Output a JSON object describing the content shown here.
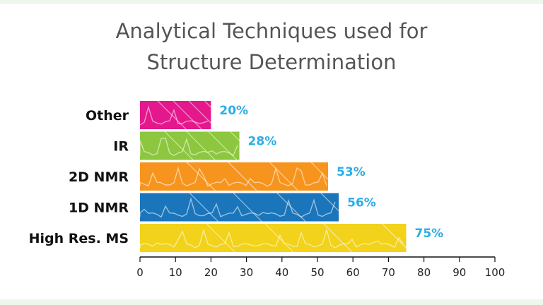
{
  "chart_data": {
    "type": "bar",
    "orientation": "horizontal",
    "title": [
      "Analytical Techniques used for",
      "Structure Determination"
    ],
    "categories": [
      "Other",
      "IR",
      "2D NMR",
      "1D NMR",
      "High Res. MS"
    ],
    "values": [
      20,
      28,
      53,
      56,
      75
    ],
    "value_labels": [
      "20%",
      "28%",
      "53%",
      "56%",
      "75%"
    ],
    "colors": [
      "#e4178c",
      "#8dc63f",
      "#f7941d",
      "#1b75bb",
      "#f2d21b"
    ],
    "value_label_color": "#29aee6",
    "xlim": [
      0,
      100
    ],
    "xticks": [
      0,
      10,
      20,
      30,
      40,
      50,
      60,
      70,
      80,
      90,
      100
    ],
    "xtick_labels": [
      "0",
      "10",
      "20",
      "30",
      "40",
      "50",
      "60",
      "70",
      "80",
      "90",
      "100"
    ],
    "grid": false,
    "legend": "none"
  }
}
